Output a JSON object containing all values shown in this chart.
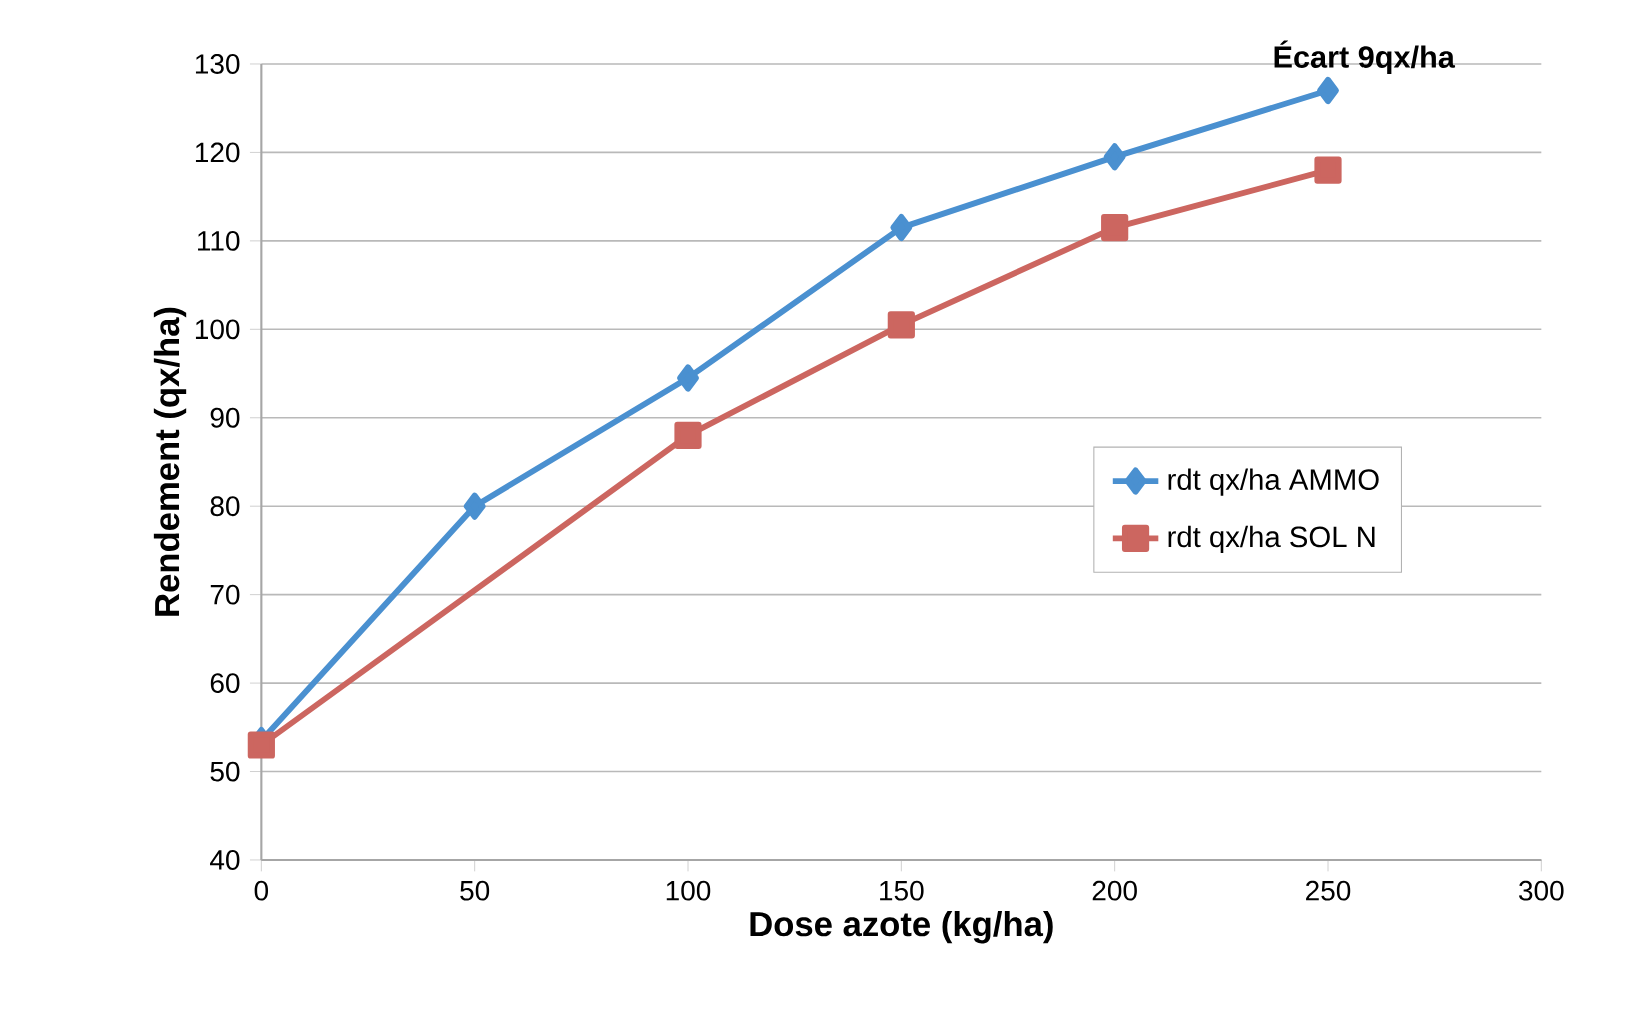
{
  "chart_data": {
    "type": "line",
    "xlabel": "Dose azote (kg/ha)",
    "ylabel": "Rendement (qx/ha)",
    "xlim": [
      0,
      300
    ],
    "xticks": [
      0,
      50,
      100,
      150,
      200,
      250,
      300
    ],
    "ylim": [
      40,
      130
    ],
    "yticks": [
      40,
      50,
      60,
      70,
      80,
      90,
      100,
      110,
      120,
      130
    ],
    "grid": "y",
    "legend": "right",
    "line_style": "solid",
    "annotations": [
      {
        "text": "Écart 9qx/ha",
        "x": 250,
        "y": 127
      }
    ],
    "series": [
      {
        "name": "rdt qx/ha AMMO",
        "color": "#4a90d0",
        "marker": "diamond",
        "x": [
          0,
          50,
          100,
          150,
          200,
          250
        ],
        "values": [
          53.5,
          80,
          94.5,
          111.5,
          119.5,
          127
        ]
      },
      {
        "name": "rdt qx/ha SOL N",
        "color": "#cc6660",
        "marker": "square",
        "x": [
          0,
          100,
          150,
          200,
          250
        ],
        "values": [
          53,
          88,
          100.5,
          111.5,
          118
        ]
      }
    ]
  }
}
